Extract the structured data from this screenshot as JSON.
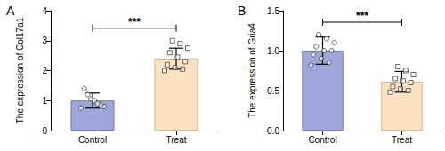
{
  "chart_data": [
    {
      "type": "bar",
      "title": "A",
      "categories": [
        "Control",
        "Treat"
      ],
      "values": [
        1.0,
        2.4
      ],
      "errors": [
        0.25,
        0.35
      ],
      "points": [
        [
          0.75,
          0.8,
          0.85,
          0.9,
          1.0,
          1.05,
          1.2,
          1.4
        ],
        [
          2.0,
          2.05,
          2.1,
          2.2,
          2.3,
          2.45,
          2.6,
          2.75,
          2.9,
          3.0
        ]
      ],
      "colors": [
        "#9fa6d9",
        "#fde2c2"
      ],
      "y_label": "The expression of Col17a1",
      "ylim": [
        0,
        4
      ],
      "yticks": [
        0,
        1,
        2,
        3,
        4
      ],
      "grid": false,
      "annotations": [
        {
          "text": "***",
          "between": [
            "Control",
            "Treat"
          ]
        }
      ]
    },
    {
      "type": "bar",
      "title": "B",
      "categories": [
        "Control",
        "Treat"
      ],
      "values": [
        1.0,
        0.61
      ],
      "errors": [
        0.17,
        0.13
      ],
      "points": [
        [
          0.82,
          0.85,
          0.9,
          0.95,
          1.0,
          1.0,
          1.05,
          1.1,
          1.15,
          1.2
        ],
        [
          0.48,
          0.5,
          0.52,
          0.55,
          0.6,
          0.62,
          0.65,
          0.7,
          0.75,
          0.8
        ]
      ],
      "colors": [
        "#9fa6d9",
        "#fde2c2"
      ],
      "y_label": "The expression of Gria4",
      "ylim": [
        0,
        1.5
      ],
      "yticks": [
        {
          "value": 0,
          "label": "0.0"
        },
        {
          "value": 0.5,
          "label": "0.5"
        },
        {
          "value": 1,
          "label": "1.0"
        },
        {
          "value": 1.5,
          "label": "1.5"
        }
      ],
      "grid": false,
      "annotations": [
        {
          "text": "***",
          "between": [
            "Control",
            "Treat"
          ]
        }
      ]
    }
  ]
}
